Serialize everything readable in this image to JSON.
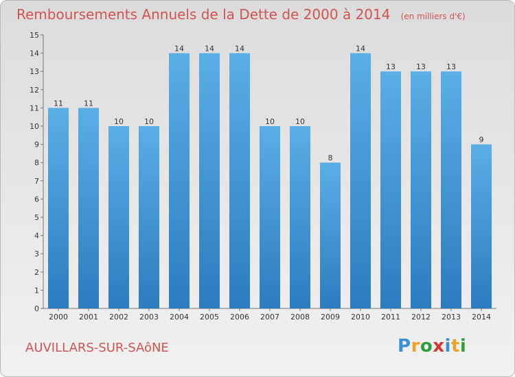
{
  "chart_data": {
    "type": "bar",
    "title": "Remboursements Annuels de la Dette de 2000 à 2014",
    "subtitle": "(en milliers d'€)",
    "categories": [
      "2000",
      "2001",
      "2002",
      "2003",
      "2004",
      "2005",
      "2006",
      "2007",
      "2008",
      "2009",
      "2010",
      "2011",
      "2012",
      "2013",
      "2014"
    ],
    "values": [
      11,
      11,
      10,
      10,
      14,
      14,
      14,
      10,
      10,
      8,
      14,
      13,
      13,
      13,
      9
    ],
    "ylim": [
      0,
      15
    ],
    "yticks": [
      0,
      1,
      2,
      3,
      4,
      5,
      6,
      7,
      8,
      9,
      10,
      11,
      12,
      13,
      14,
      15
    ],
    "grid": false,
    "colors": {
      "bar_light": "#5aaee6",
      "bar_dark": "#2b7cc0",
      "title": "#d2544f"
    }
  },
  "footer": {
    "commune": "AUVILLARS-SUR-SAôNE",
    "logo_letters": [
      "P",
      "r",
      "o",
      "x",
      "i",
      "t",
      "i"
    ],
    "logo_colors": [
      "#3b8fd4",
      "#f0a12a",
      "#2e9e3e",
      "#d9312b",
      "#3b8fd4",
      "#f0a12a",
      "#2e9e3e"
    ]
  }
}
